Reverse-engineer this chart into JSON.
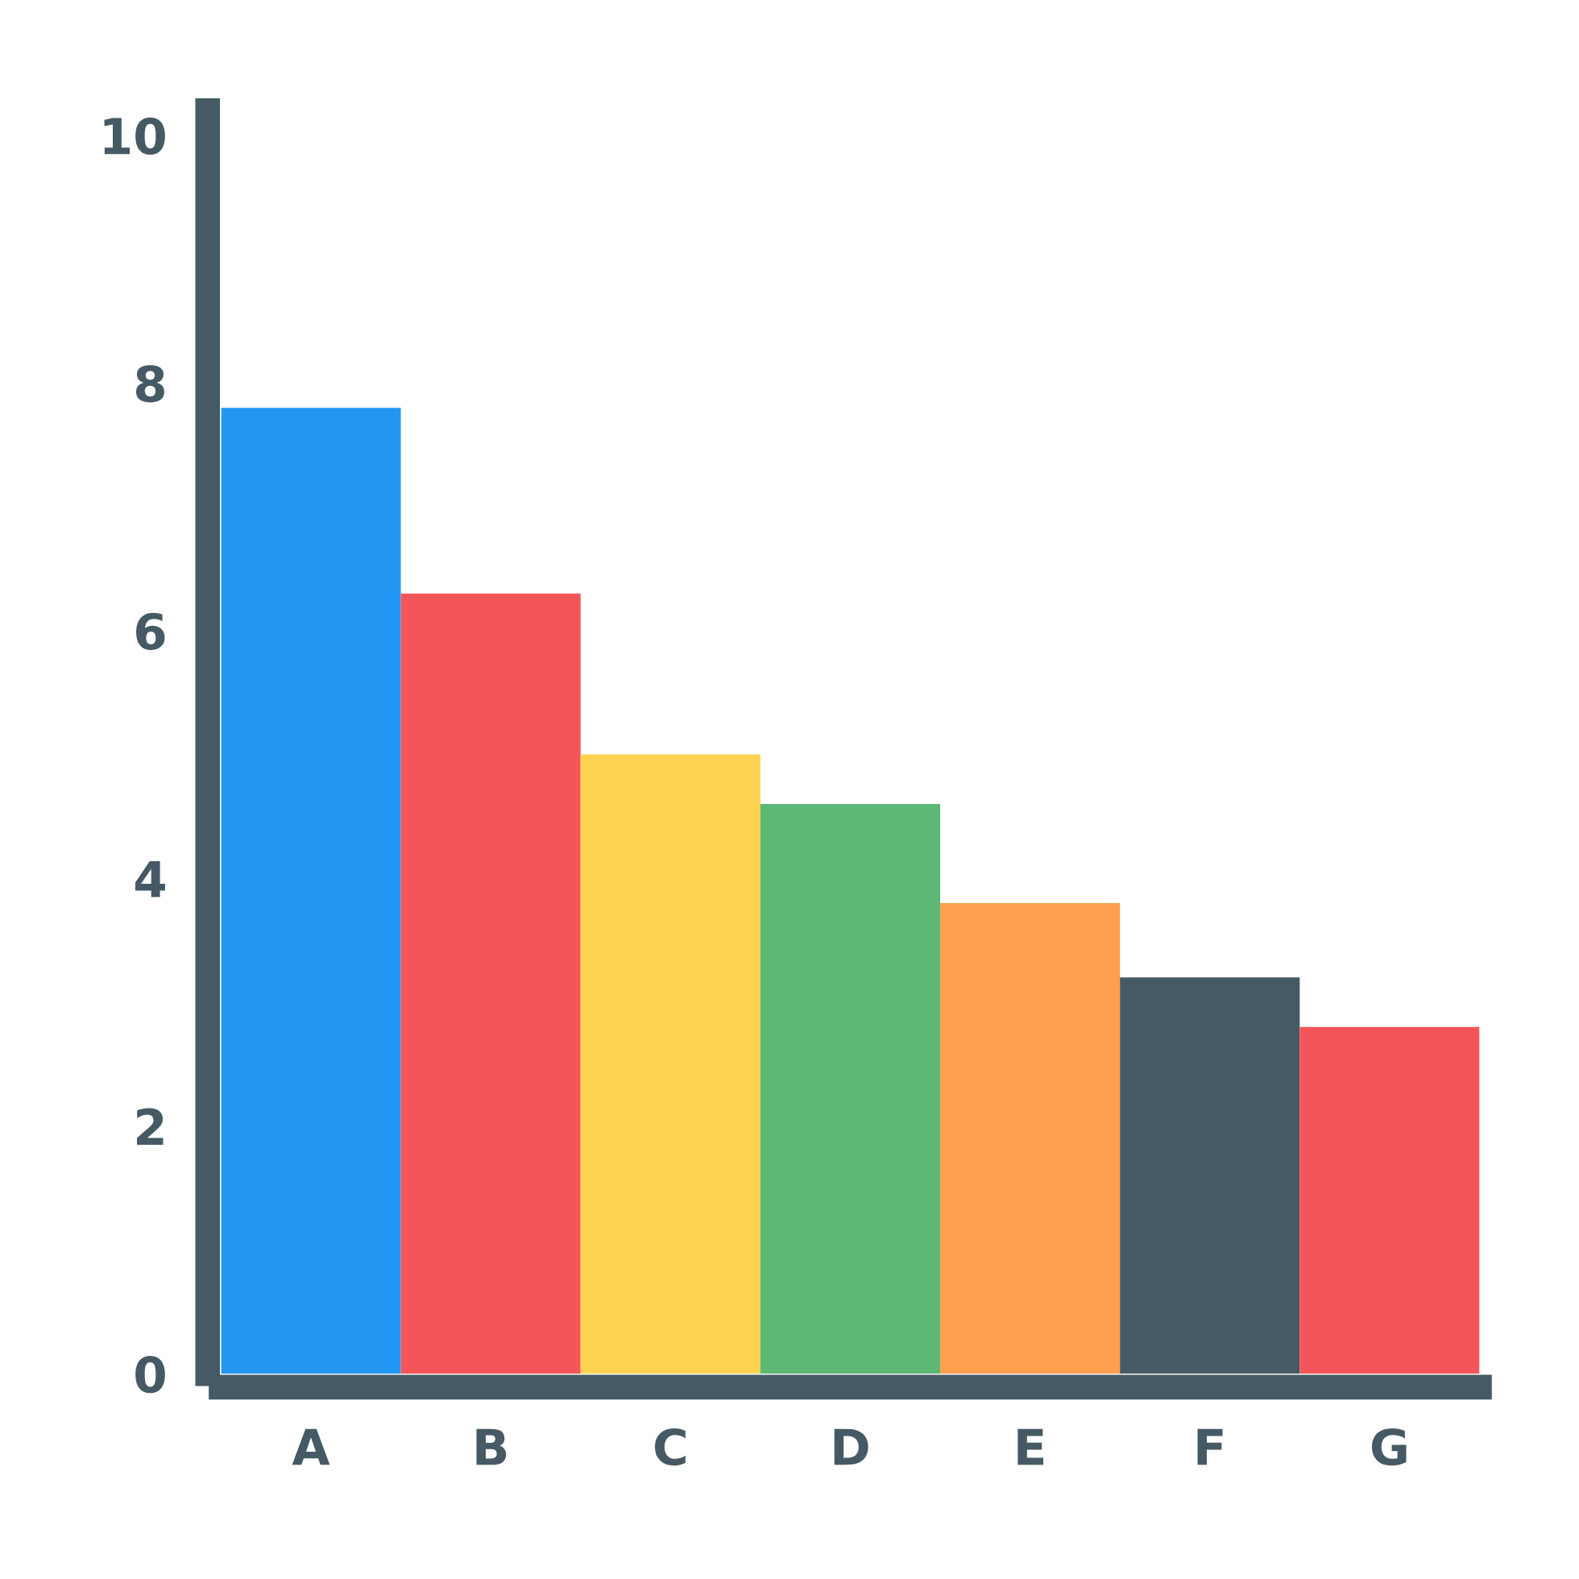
{
  "chart_data": {
    "type": "bar",
    "categories": [
      "A",
      "B",
      "C",
      "D",
      "E",
      "F",
      "G"
    ],
    "values": [
      7.8,
      6.3,
      5.0,
      4.6,
      3.8,
      3.2,
      2.8
    ],
    "colors": [
      "#2196f3",
      "#f2565a",
      "#fdd250",
      "#5cb874",
      "#fea04e",
      "#455a64",
      "#f2565a"
    ],
    "ylim": [
      0,
      10.2
    ],
    "yticks": [
      0,
      2,
      4,
      6,
      8,
      10
    ],
    "grid": false,
    "legend": false
  }
}
